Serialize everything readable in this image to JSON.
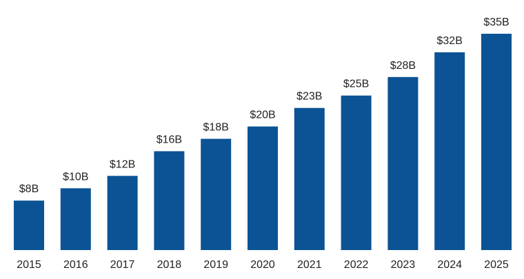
{
  "chart_data": {
    "type": "bar",
    "title": "",
    "xlabel": "",
    "ylabel": "",
    "categories": [
      "2015",
      "2016",
      "2017",
      "2018",
      "2019",
      "2020",
      "2021",
      "2022",
      "2023",
      "2024",
      "2025"
    ],
    "values": [
      8,
      10,
      12,
      16,
      18,
      20,
      23,
      25,
      28,
      32,
      35
    ],
    "data_labels": [
      "$8B",
      "$10B",
      "$12B",
      "$16B",
      "$18B",
      "$20B",
      "$23B",
      "$25B",
      "$28B",
      "$32B",
      "$35B"
    ],
    "ylim": [
      0,
      35
    ],
    "grid": false,
    "legend": "none",
    "colors": {
      "bar": "#0b5394",
      "text": "#1f1f1f",
      "background": "#ffffff"
    }
  }
}
